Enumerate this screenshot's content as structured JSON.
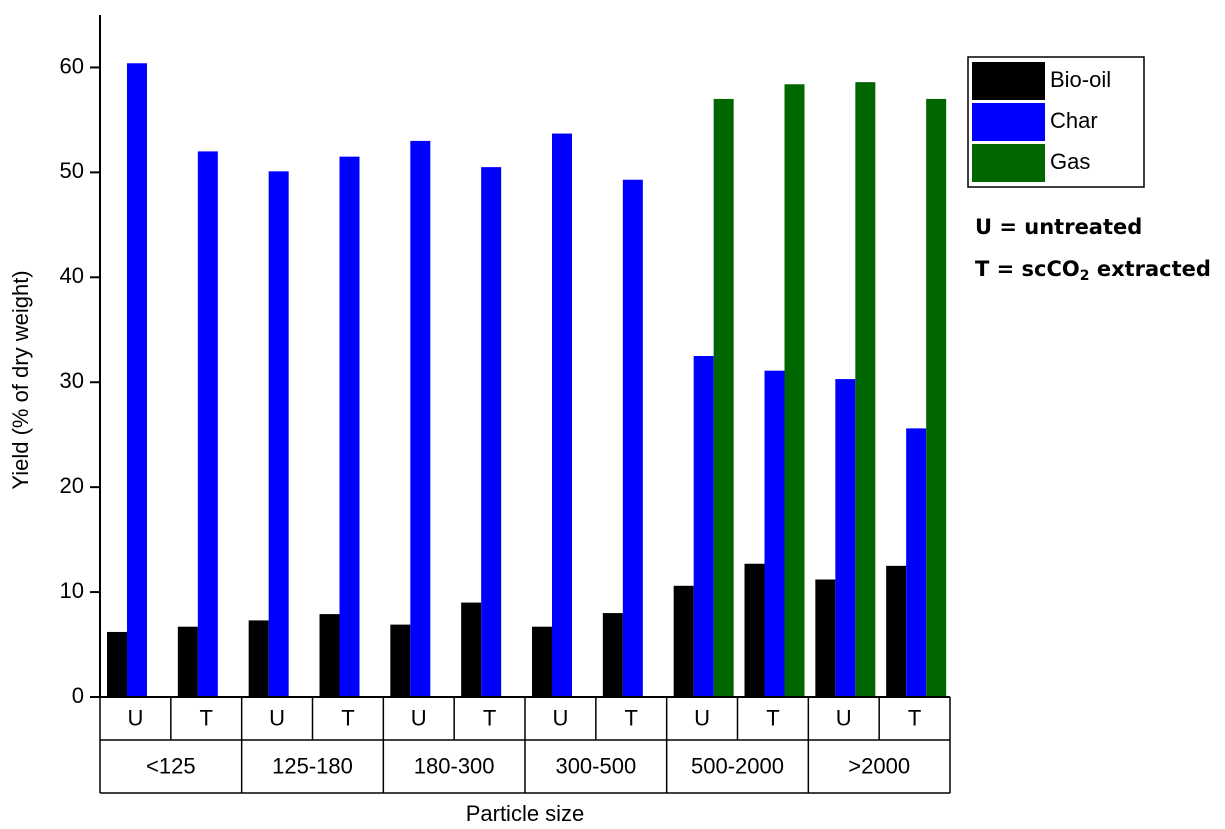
{
  "chart_data": {
    "type": "bar",
    "y_label": "Yield (% of dry weight)",
    "x_label": "Particle size",
    "categories": [
      "U",
      "T",
      "U",
      "T",
      "U",
      "T",
      "U",
      "T",
      "U",
      "T",
      "U",
      "T"
    ],
    "groups": [
      "<125",
      "125-180",
      "180-300",
      "300-500",
      "500-2000",
      ">2000"
    ],
    "series": [
      {
        "name": "Bio-oil",
        "color": "#000000",
        "values": [
          6.2,
          6.7,
          7.3,
          7.9,
          6.9,
          9.0,
          6.7,
          8.0,
          10.6,
          12.7,
          11.2,
          12.5
        ]
      },
      {
        "name": "Char",
        "color": "#0000ff",
        "values": [
          60.4,
          52.0,
          50.1,
          51.5,
          53.0,
          50.5,
          53.7,
          49.3,
          32.5,
          31.1,
          30.3,
          25.6
        ]
      },
      {
        "name": "Gas",
        "color": "#006600",
        "values": [
          null,
          null,
          null,
          null,
          null,
          null,
          null,
          null,
          57.0,
          58.4,
          58.6,
          57.0
        ]
      }
    ],
    "ylim": [
      0,
      65
    ],
    "yticks": [
      0,
      10,
      20,
      30,
      40,
      50,
      60
    ],
    "annotations": [
      {
        "text": "U = untreated"
      },
      {
        "text": "T = scCO",
        "subscript": "2",
        "suffix": " extracted"
      }
    ]
  }
}
